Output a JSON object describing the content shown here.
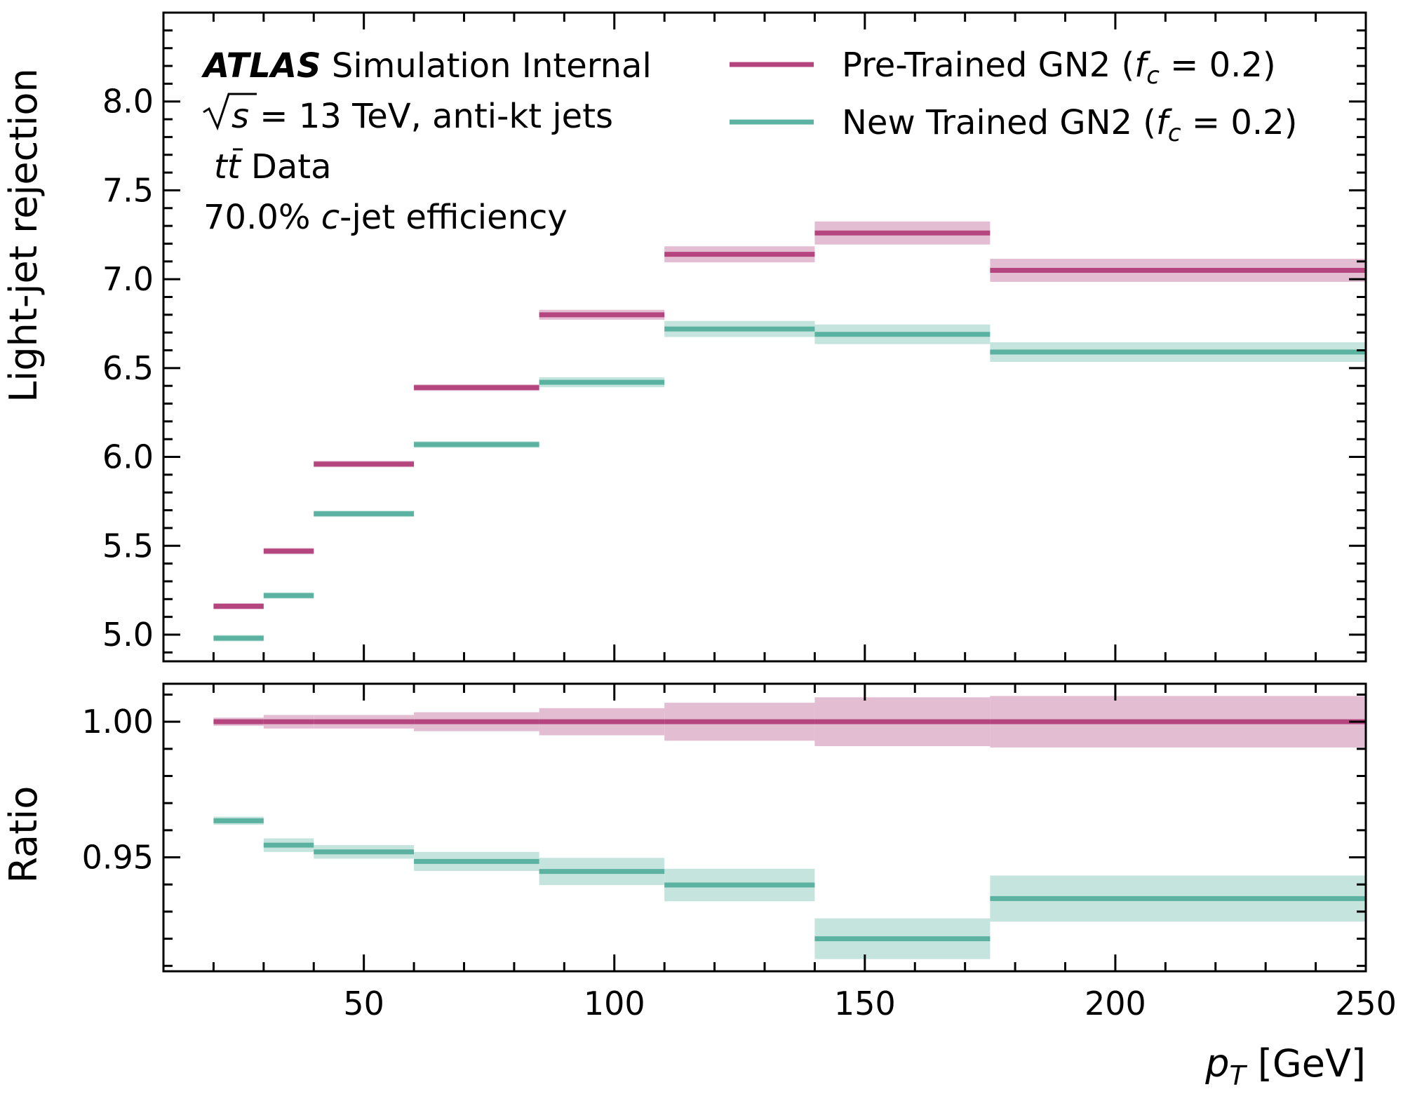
{
  "chart_data": {
    "type": "step",
    "colors": {
      "pretrained": "#b4457f",
      "pretrained_band": "#e3bdd2",
      "newtrained": "#5cb2a0",
      "newtrained_band": "#c4e4dd"
    },
    "x": {
      "label_var": "p",
      "label_sub": "T",
      "label_unit": " [GeV]",
      "lim": [
        10,
        250
      ],
      "ticks": [
        50,
        100,
        150,
        200,
        250
      ],
      "tick_labels": [
        "50",
        "100",
        "150",
        "200",
        "250"
      ],
      "bin_edges": [
        20,
        30,
        40,
        60,
        85,
        110,
        140,
        175,
        250
      ]
    },
    "upper": {
      "ylabel": "Light-jet rejection",
      "ylim": [
        4.85,
        8.5
      ],
      "ticks": [
        5.0,
        5.5,
        6.0,
        6.5,
        7.0,
        7.5,
        8.0
      ],
      "tick_labels": [
        "5.0",
        "5.5",
        "6.0",
        "6.5",
        "7.0",
        "7.5",
        "8.0"
      ],
      "series": [
        {
          "name": "Pre-Trained GN2",
          "key": "pretrained",
          "values": [
            5.16,
            5.47,
            5.96,
            6.39,
            6.8,
            7.14,
            7.26,
            7.05
          ],
          "errors": [
            0.008,
            0.01,
            0.012,
            0.018,
            0.028,
            0.045,
            0.065,
            0.065
          ]
        },
        {
          "name": "New Trained GN2",
          "key": "newtrained",
          "values": [
            4.98,
            5.22,
            5.68,
            6.07,
            6.42,
            6.72,
            6.69,
            6.59
          ],
          "errors": [
            0.008,
            0.01,
            0.012,
            0.018,
            0.028,
            0.045,
            0.055,
            0.055
          ]
        }
      ]
    },
    "lower": {
      "ylabel": "Ratio",
      "ylim": [
        0.908,
        1.014
      ],
      "ticks": [
        0.95,
        1.0
      ],
      "tick_labels": [
        "0.95",
        "1.00"
      ],
      "series": [
        {
          "key": "pretrained",
          "values": [
            1.0,
            1.0,
            1.0,
            1.0,
            1.0,
            1.0,
            1.0,
            1.0
          ],
          "errors": [
            0.0015,
            0.0025,
            0.0025,
            0.0035,
            0.005,
            0.007,
            0.009,
            0.0095
          ]
        },
        {
          "key": "newtrained",
          "values": [
            0.9635,
            0.9545,
            0.952,
            0.9485,
            0.9448,
            0.9398,
            0.92,
            0.9348
          ],
          "errors": [
            0.0015,
            0.0025,
            0.0025,
            0.0035,
            0.005,
            0.006,
            0.0075,
            0.0085
          ]
        }
      ]
    },
    "legend": {
      "position": "top-right",
      "entries": [
        {
          "key": "pretrained",
          "label": "Pre-Trained GN2 (",
          "var": "f",
          "sub": "c",
          "rest": " = 0.2)"
        },
        {
          "key": "newtrained",
          "label": "New Trained GN2 (",
          "var": "f",
          "sub": "c",
          "rest": " = 0.2)"
        }
      ]
    },
    "annotations": {
      "experiment": "ATLAS",
      "status": " Simulation Internal",
      "energy_pre": "s",
      "energy_rest": " = 13 TeV, anti-kt jets",
      "sample_var": "t",
      "sample_var2": "t",
      "sample_rest": " Data",
      "wp_value": "70.0% ",
      "wp_var": "c",
      "wp_rest": "-jet efficiency"
    }
  }
}
